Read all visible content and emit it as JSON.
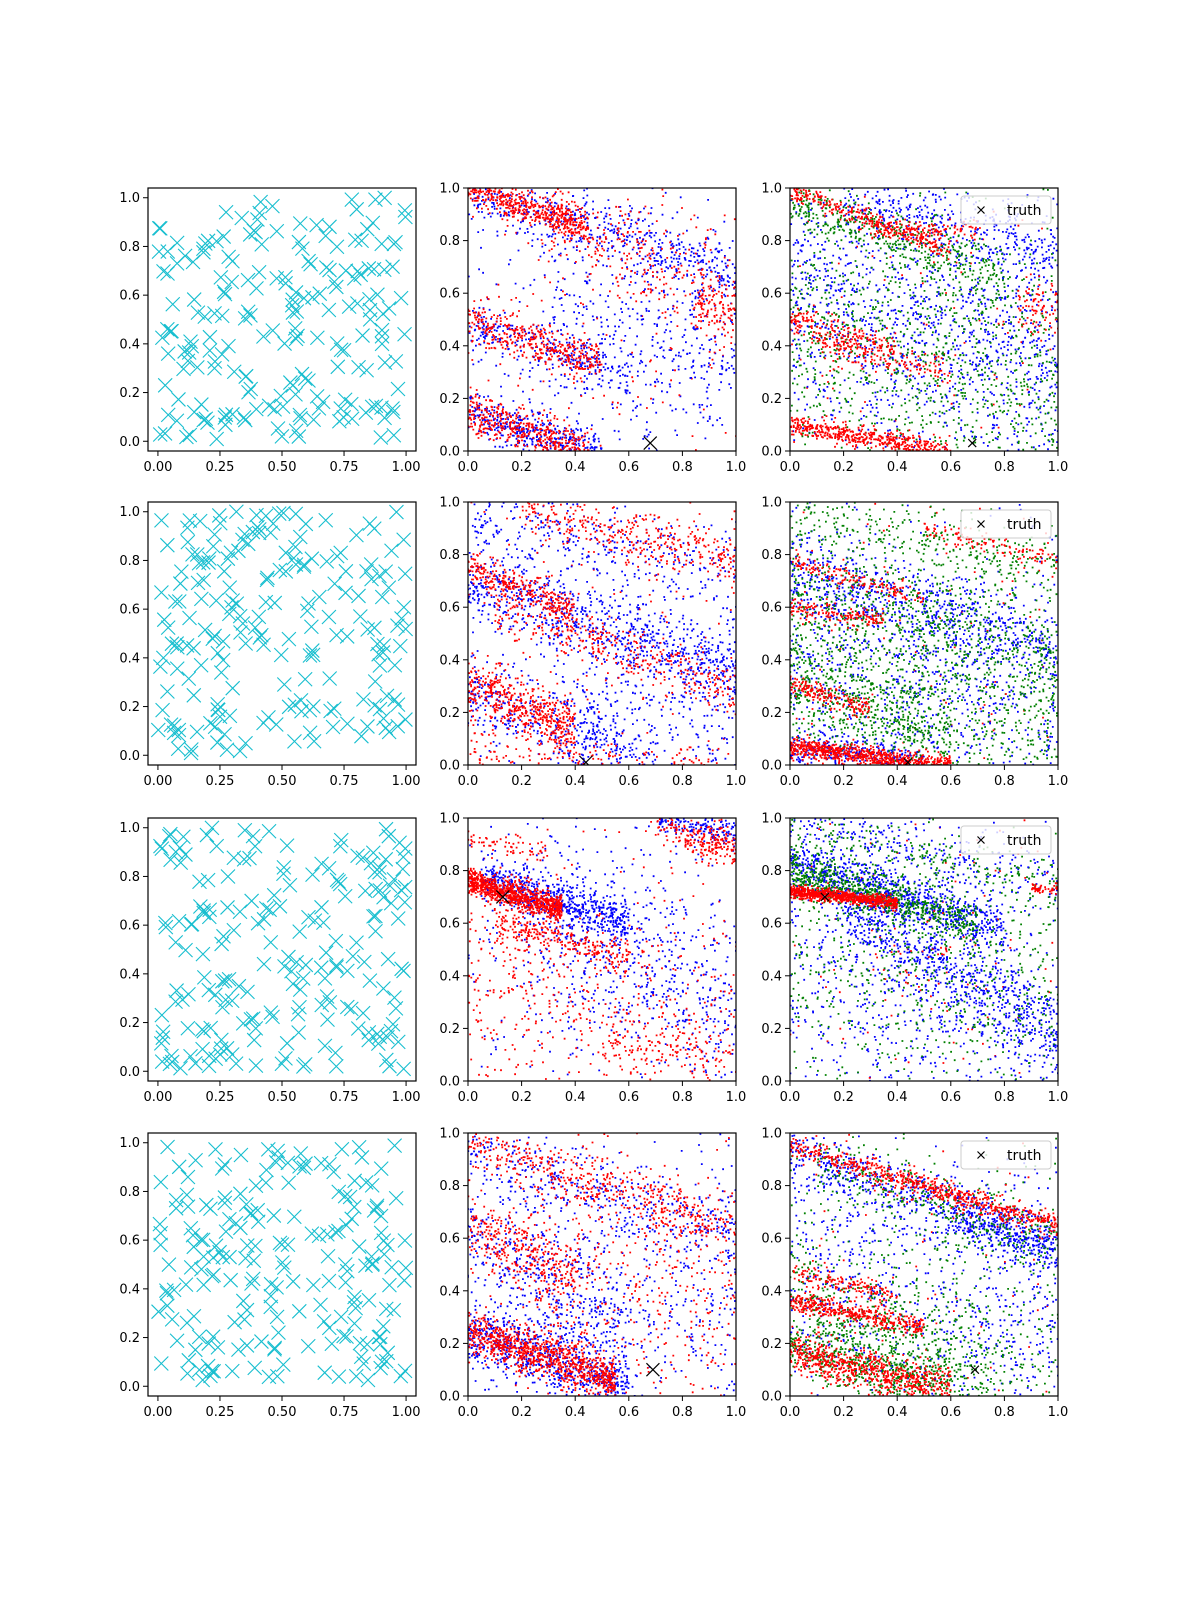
{
  "chart_data": {
    "type": "scatter",
    "layout": "4x3 grid",
    "rows": [
      {
        "truth": [
          0.68,
          0.03
        ]
      },
      {
        "truth": [
          0.44,
          0.01
        ]
      },
      {
        "truth": [
          0.13,
          0.7
        ]
      },
      {
        "truth": [
          0.69,
          0.1
        ]
      }
    ],
    "left_panel": {
      "xlim": [
        -0.04,
        1.04
      ],
      "ylim": [
        -0.04,
        1.04
      ],
      "xticks": [
        "0.00",
        "0.25",
        "0.50",
        "0.75",
        "1.00"
      ],
      "yticks": [
        "0.0",
        "0.2",
        "0.4",
        "0.6",
        "0.8",
        "1.0"
      ],
      "marker": "x",
      "color": "#17becf",
      "point_count": 200,
      "distribution": "uniform random in [0,1]x[0,1]"
    },
    "middle_panel": {
      "xlim": [
        0,
        1
      ],
      "ylim": [
        0,
        1
      ],
      "xticks": [
        "0.0",
        "0.2",
        "0.4",
        "0.6",
        "0.8",
        "1.0"
      ],
      "yticks": [
        "0.0",
        "0.2",
        "0.4",
        "0.6",
        "0.8",
        "1.0"
      ],
      "series": [
        {
          "color": "#0000ff"
        },
        {
          "color": "#ff0000"
        }
      ]
    },
    "right_panel": {
      "xlim": [
        0,
        1
      ],
      "ylim": [
        0,
        1
      ],
      "xticks": [
        "0.0",
        "0.2",
        "0.4",
        "0.6",
        "0.8",
        "1.0"
      ],
      "yticks": [
        "0.0",
        "0.2",
        "0.4",
        "0.6",
        "0.8",
        "1.0"
      ],
      "series": [
        {
          "color": "#0000ff"
        },
        {
          "color": "#008000"
        },
        {
          "color": "#ff0000"
        }
      ],
      "legend": {
        "label": "truth",
        "placement": "top-right"
      }
    },
    "bands": {
      "row0_middle": [
        {
          "color": "r",
          "y0": 1.0,
          "slope": -0.35,
          "x0": 0.0,
          "x1": 0.45,
          "n": 500,
          "w": 0.03
        },
        {
          "color": "b",
          "y0": 0.98,
          "slope": -0.3,
          "x0": 0.0,
          "x1": 1.0,
          "n": 500,
          "w": 0.06
        },
        {
          "color": "r",
          "y0": 0.5,
          "slope": -0.35,
          "x0": 0.0,
          "x1": 0.5,
          "n": 400,
          "w": 0.04
        },
        {
          "color": "b",
          "y0": 0.47,
          "slope": -0.3,
          "x0": 0.0,
          "x1": 0.6,
          "n": 250,
          "w": 0.05
        },
        {
          "color": "r",
          "y0": 0.15,
          "slope": -0.35,
          "x0": 0.0,
          "x1": 0.45,
          "n": 450,
          "w": 0.04
        },
        {
          "color": "b",
          "y0": 0.14,
          "slope": -0.3,
          "x0": 0.0,
          "x1": 0.5,
          "n": 400,
          "w": 0.04
        },
        {
          "color": "r",
          "y0": 0.55,
          "slope": 0.0,
          "x0": 0.85,
          "x1": 1.0,
          "n": 80,
          "w": 0.05
        },
        {
          "color": "r",
          "y0": 0.9,
          "slope": -0.5,
          "x0": 0.3,
          "x1": 1.0,
          "n": 300,
          "w": 0.1
        },
        {
          "color": "b",
          "y0": 0.5,
          "slope": -0.2,
          "x0": 0.3,
          "x1": 1.0,
          "n": 300,
          "w": 0.15
        }
      ]
    }
  }
}
